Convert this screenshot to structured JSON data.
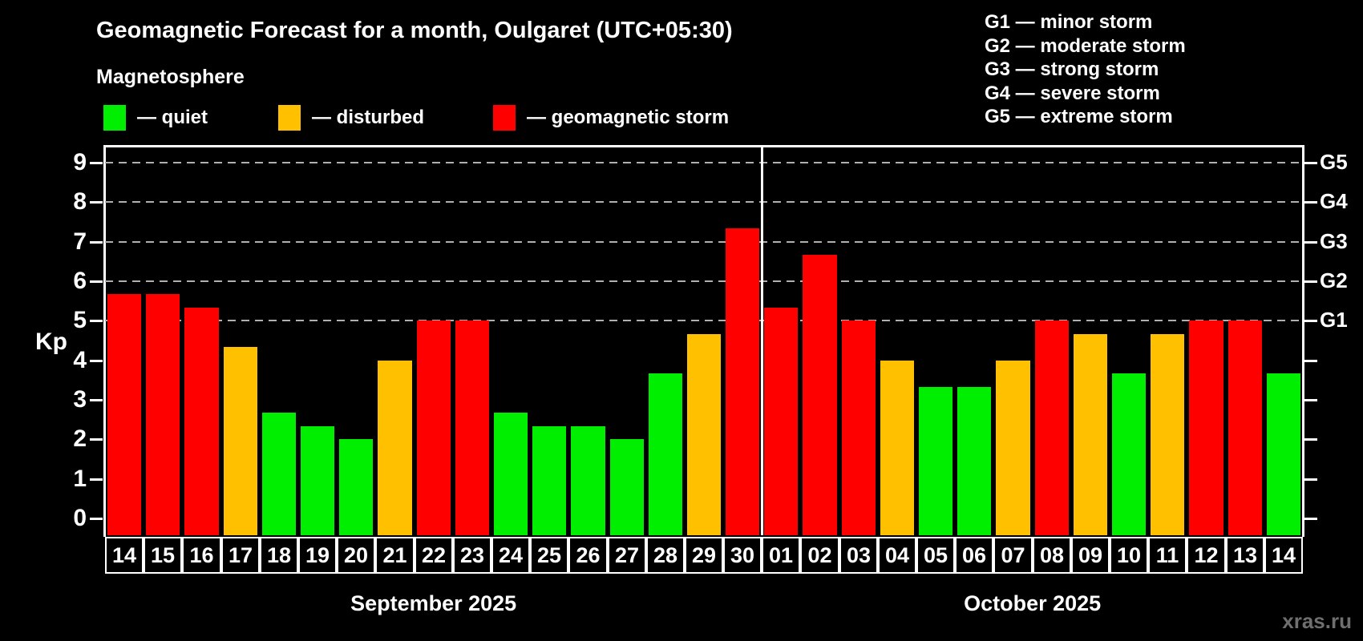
{
  "title": "Geomagnetic Forecast for a month, Oulgaret (UTC+05:30)",
  "subtitle": "Magnetosphere",
  "series_legend": [
    {
      "key": "quiet",
      "swatch_color": "#00ee00",
      "label": "— quiet"
    },
    {
      "key": "disturbed",
      "swatch_color": "#ffc000",
      "label": "— disturbed"
    },
    {
      "key": "storm",
      "swatch_color": "#ff0000",
      "label": "— geomagnetic storm"
    }
  ],
  "storm_scale_legend": [
    "G1 — minor storm",
    "G2 — moderate storm",
    "G3 — strong storm",
    "G4 — severe storm",
    "G5 — extreme storm"
  ],
  "watermark": "xras.ru",
  "chart_data": {
    "type": "bar",
    "title": "Geomagnetic Forecast for a month, Oulgaret (UTC+05:30)",
    "ylabel": "Kp",
    "ylim": [
      0,
      9
    ],
    "y_ticks": [
      0,
      1,
      2,
      3,
      4,
      5,
      6,
      7,
      8,
      9
    ],
    "grid_levels": [
      5,
      6,
      7,
      8,
      9
    ],
    "grid_style": "dashed",
    "legend_position": "top-left",
    "right_axis_labels": [
      {
        "value": 5,
        "label": "G1"
      },
      {
        "value": 6,
        "label": "G2"
      },
      {
        "value": 7,
        "label": "G3"
      },
      {
        "value": 8,
        "label": "G4"
      },
      {
        "value": 9,
        "label": "G5"
      }
    ],
    "category_colors": {
      "quiet": "#00ee00",
      "disturbed": "#ffc000",
      "storm": "#ff0000"
    },
    "groups": [
      {
        "label": "September 2025",
        "bars": [
          {
            "day": "14",
            "kp": 5.67,
            "category": "storm"
          },
          {
            "day": "15",
            "kp": 5.67,
            "category": "storm"
          },
          {
            "day": "16",
            "kp": 5.33,
            "category": "storm"
          },
          {
            "day": "17",
            "kp": 4.33,
            "category": "disturbed"
          },
          {
            "day": "18",
            "kp": 2.67,
            "category": "quiet"
          },
          {
            "day": "19",
            "kp": 2.33,
            "category": "quiet"
          },
          {
            "day": "20",
            "kp": 2,
            "category": "quiet"
          },
          {
            "day": "21",
            "kp": 4,
            "category": "disturbed"
          },
          {
            "day": "22",
            "kp": 5,
            "category": "storm"
          },
          {
            "day": "23",
            "kp": 5,
            "category": "storm"
          },
          {
            "day": "24",
            "kp": 2.67,
            "category": "quiet"
          },
          {
            "day": "25",
            "kp": 2.33,
            "category": "quiet"
          },
          {
            "day": "26",
            "kp": 2.33,
            "category": "quiet"
          },
          {
            "day": "27",
            "kp": 2,
            "category": "quiet"
          },
          {
            "day": "28",
            "kp": 3.67,
            "category": "quiet"
          },
          {
            "day": "29",
            "kp": 4.67,
            "category": "disturbed"
          },
          {
            "day": "30",
            "kp": 7.33,
            "category": "storm"
          }
        ]
      },
      {
        "label": "October 2025",
        "bars": [
          {
            "day": "01",
            "kp": 5.33,
            "category": "storm"
          },
          {
            "day": "02",
            "kp": 6.67,
            "category": "storm"
          },
          {
            "day": "03",
            "kp": 5,
            "category": "storm"
          },
          {
            "day": "04",
            "kp": 4,
            "category": "disturbed"
          },
          {
            "day": "05",
            "kp": 3.33,
            "category": "quiet"
          },
          {
            "day": "06",
            "kp": 3.33,
            "category": "quiet"
          },
          {
            "day": "07",
            "kp": 4,
            "category": "disturbed"
          },
          {
            "day": "08",
            "kp": 5,
            "category": "storm"
          },
          {
            "day": "09",
            "kp": 4.67,
            "category": "disturbed"
          },
          {
            "day": "10",
            "kp": 3.67,
            "category": "quiet"
          },
          {
            "day": "11",
            "kp": 4.67,
            "category": "disturbed"
          },
          {
            "day": "12",
            "kp": 5,
            "category": "storm"
          },
          {
            "day": "13",
            "kp": 5,
            "category": "storm"
          },
          {
            "day": "14",
            "kp": 3.67,
            "category": "quiet"
          }
        ]
      }
    ]
  }
}
